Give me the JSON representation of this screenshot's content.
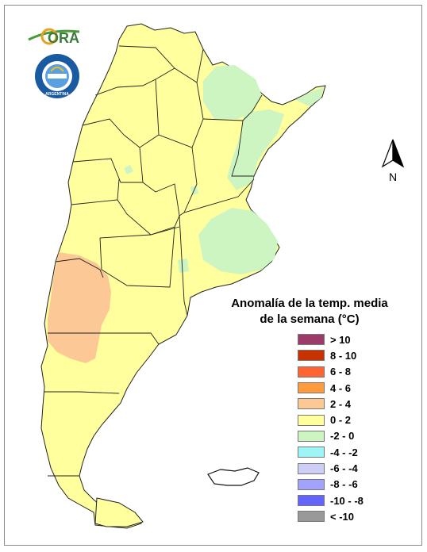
{
  "logos": {
    "ora_text": "ORA",
    "smn_text": "SERVICIO METEOROLÓGICO NACIONAL",
    "smn_country": "ARGENTINA"
  },
  "north_arrow": {
    "label": "N"
  },
  "legend": {
    "title_line1": "Anomalía de la temp. media",
    "title_line2": "de la semana (°C)",
    "items": [
      {
        "label": "> 10",
        "color": "#9c3a68"
      },
      {
        "label": "8 - 10",
        "color": "#c83200"
      },
      {
        "label": "6 - 8",
        "color": "#ff6433"
      },
      {
        "label": "4 - 6",
        "color": "#ff9a3d"
      },
      {
        "label": "2 - 4",
        "color": "#fcc896"
      },
      {
        "label": "0 - 2",
        "color": "#ffff9e"
      },
      {
        "label": "-2 - 0",
        "color": "#ccf5c2"
      },
      {
        "label": "-4 - -2",
        "color": "#9ef5f5"
      },
      {
        "label": "-6 - -4",
        "color": "#cdcdf5"
      },
      {
        "label": "-8 - -6",
        "color": "#a2a2ff"
      },
      {
        "label": "-10 - -8",
        "color": "#6464ff"
      },
      {
        "label": "< -10",
        "color": "#999999"
      }
    ]
  },
  "map": {
    "base_class": "0 - 2",
    "warm_anomaly_region": "2 - 4",
    "cool_anomaly_regions": "-2 - 0"
  }
}
